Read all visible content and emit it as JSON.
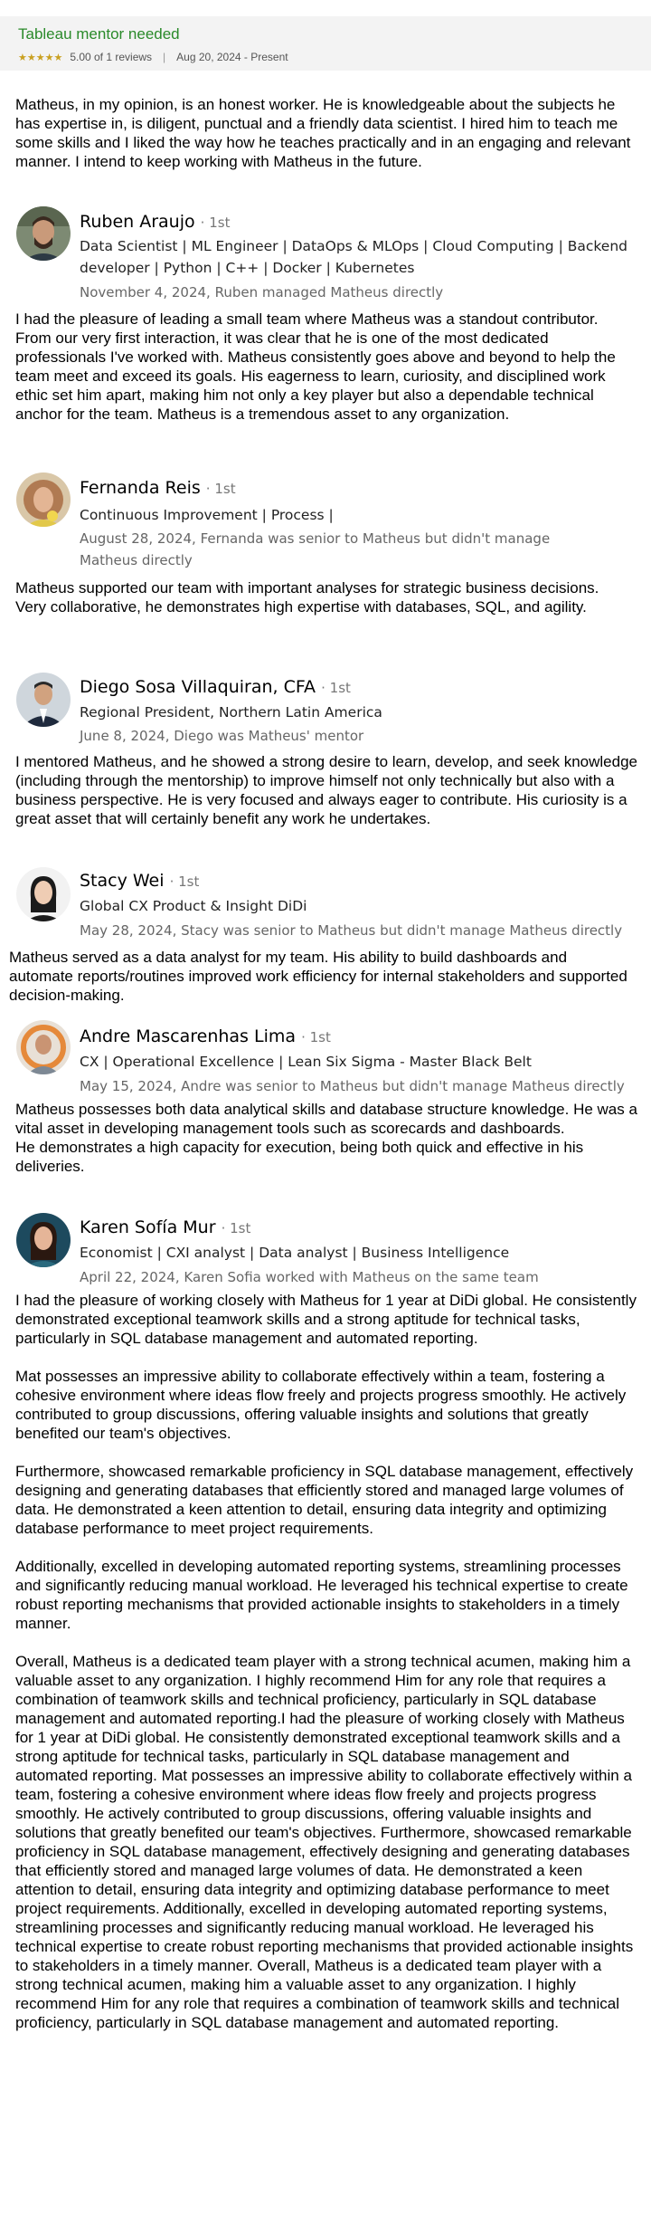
{
  "project": {
    "title": "Tableau mentor needed",
    "stars": "★★★★★",
    "rating": "5.00 of 1 reviews",
    "date_range": "Aug 20, 2024 - Present",
    "review": "Matheus, in my opinion, is an honest worker. He is knowledgeable about the subjects he has expertise in, is diligent, punctual and a friendly data scientist. I hired him to teach me some skills and I liked the way how he teaches practically and in an engaging and relevant manner. I intend to keep working with Matheus in the future."
  },
  "recommendations": [
    {
      "name": "Ruben Araujo",
      "degree": "· 1st",
      "role": "Data Scientist | ML Engineer | DataOps & MLOps | Cloud Computing | Backend developer | Python | C++ | Docker | Kubernetes",
      "meta": "November 4, 2024, Ruben managed Matheus directly",
      "text": "I had the pleasure of leading a small team where Matheus was a standout contributor. From our very first interaction, it was clear that he is one of the most dedicated professionals I've worked with. Matheus consistently goes above and beyond to help the team meet and exceed its goals. His eagerness to learn, curiosity, and disciplined work ethic set him apart, making him not only a key player but also a dependable technical anchor for the team. Matheus is a tremendous asset to any organization."
    },
    {
      "name": "Fernanda Reis",
      "degree": "· 1st",
      "role": "Continuous Improvement | Process |",
      "meta": "August 28, 2024, Fernanda was senior to Matheus but didn't manage Matheus directly",
      "text": "Matheus supported our team with important analyses for strategic business decisions.\nVery collaborative, he demonstrates high expertise with databases, SQL, and agility."
    },
    {
      "name": "Diego Sosa Villaquiran, CFA",
      "degree": "· 1st",
      "role": "Regional President, Northern Latin America",
      "meta": "June 8, 2024, Diego was Matheus' mentor",
      "text": "I mentored Matheus, and he showed a strong desire to learn, develop, and seek knowledge (including through the mentorship) to improve himself not only technically but also with a business perspective. He is very focused and always eager to contribute. His curiosity is a great asset that will certainly benefit any work he undertakes."
    },
    {
      "name": "Stacy Wei",
      "degree": "· 1st",
      "role": "Global CX Product & Insight DiDi",
      "meta": "May 28, 2024, Stacy was senior to Matheus but didn't manage Matheus directly",
      "text": "Matheus served as a data analyst for my team. His ability to build dashboards and automate reports/routines improved work efficiency for internal stakeholders and supported decision-making."
    },
    {
      "name": "Andre Mascarenhas Lima",
      "degree": "· 1st",
      "role": "CX | Operational Excellence | Lean Six Sigma - Master Black Belt",
      "meta": "May 15, 2024, Andre was senior to Matheus but didn't manage Matheus directly",
      "text": "Matheus possesses both data analytical skills and database structure knowledge. He was a vital asset in developing management tools such as scorecards and dashboards.\nHe demonstrates a high capacity for execution, being both quick and effective in his deliveries."
    },
    {
      "name": "Karen Sofía Mur",
      "degree": "· 1st",
      "role": "Economist | CXI analyst | Data analyst | Business Intelligence",
      "meta": "April 22, 2024, Karen Sofia worked with Matheus on the same team",
      "text": "I had the pleasure of working closely with Matheus for 1 year at DiDi global. He consistently demonstrated exceptional teamwork skills and a strong aptitude for technical tasks, particularly in SQL database management and automated reporting.\n\nMat possesses an impressive ability to collaborate effectively within a team, fostering a cohesive environment where ideas flow freely and projects progress smoothly. He actively contributed to group discussions, offering valuable insights and solutions that greatly benefited our team's objectives.\n\nFurthermore, showcased remarkable proficiency in SQL database management, effectively designing and generating databases that efficiently stored and managed large volumes of data. He demonstrated a keen attention to detail, ensuring data integrity and optimizing database performance to meet project requirements.\n\nAdditionally, excelled in developing automated reporting systems, streamlining processes and significantly reducing manual workload. He leveraged his technical expertise to create robust reporting mechanisms that provided actionable insights to stakeholders in a timely manner.\n\nOverall, Matheus is a dedicated team player with a strong technical acumen, making him a valuable asset to any organization. I highly recommend Him for any role that requires a combination of teamwork skills and technical proficiency, particularly in SQL database management and automated reporting.I had the pleasure of working closely with Matheus for 1 year at DiDi global. He consistently demonstrated exceptional teamwork skills and a strong aptitude for technical tasks, particularly in SQL database management and automated reporting. Mat possesses an impressive ability to collaborate effectively within a team, fostering a cohesive environment where ideas flow freely and projects progress smoothly. He actively contributed to group discussions, offering valuable insights and solutions that greatly benefited our team's objectives. Furthermore, showcased remarkable proficiency in SQL database management, effectively designing and generating databases that efficiently stored and managed large volumes of data. He demonstrated a keen attention to detail, ensuring data integrity and optimizing database performance to meet project requirements. Additionally, excelled in developing automated reporting systems, streamlining processes and significantly reducing manual workload. He leveraged his technical expertise to create robust reporting mechanisms that provided actionable insights to stakeholders in a timely manner. Overall, Matheus is a dedicated team player with a strong technical acumen, making him a valuable asset to any organization. I highly recommend Him for any role that requires a combination of teamwork skills and technical proficiency, particularly in SQL database management and automated reporting."
    }
  ]
}
